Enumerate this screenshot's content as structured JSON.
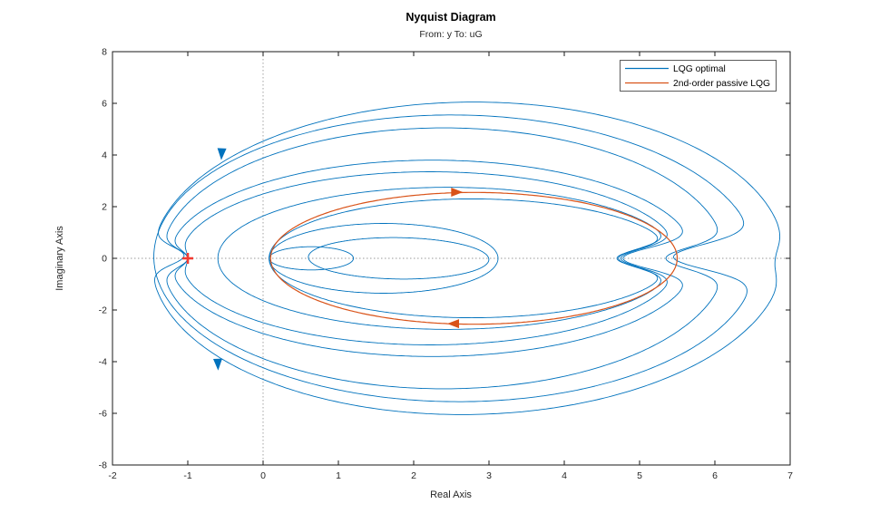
{
  "figure": {
    "title": "Nyquist Diagram",
    "subtitle": "From: y  To: uG"
  },
  "chart_data": {
    "type": "line",
    "subtype": "nyquist",
    "title": "Nyquist Diagram",
    "subtitle": "From: y  To: uG",
    "xlabel": "Real Axis",
    "ylabel": "Imaginary Axis",
    "xlim": [
      -2,
      7
    ],
    "ylim": [
      -8,
      8
    ],
    "xticks": [
      -2,
      -1,
      0,
      1,
      2,
      3,
      4,
      5,
      6,
      7
    ],
    "yticks": [
      -8,
      -6,
      -4,
      -2,
      0,
      2,
      4,
      6,
      8
    ],
    "grid": false,
    "origin_lines": {
      "style": "dotted",
      "color": "#9a9a9a"
    },
    "axis_color": "#1a1a1a",
    "legend": {
      "position": "northeast",
      "entries": [
        {
          "label": "LQG optimal",
          "color": "#0072BD"
        },
        {
          "label": "2nd-order passive LQG",
          "color": "#D95319"
        }
      ]
    },
    "critical_point": {
      "x": -1,
      "y": 0,
      "marker": "+",
      "color": "#F23B32"
    },
    "arrows": [
      {
        "x": -0.55,
        "y": 4.05,
        "angle_deg": 93,
        "color": "#0072BD"
      },
      {
        "x": -0.6,
        "y": -4.1,
        "angle_deg": 88,
        "color": "#0072BD"
      },
      {
        "x": 2.57,
        "y": 2.56,
        "angle_deg": 0,
        "color": "#D95319"
      },
      {
        "x": 2.53,
        "y": -2.53,
        "angle_deg": 180,
        "color": "#D95319"
      }
    ],
    "series": [
      {
        "name": "LQG optimal",
        "color": "#0072BD",
        "line_width": 0.9,
        "loops": [
          {
            "cx": 2.72,
            "a": 4.2,
            "b": 6.05,
            "tilt": -1.5,
            "dent_right": {
              "target": 6.8,
              "sigma": 0.8
            },
            "dent_left": {
              "target": -1.05,
              "sigma": 0.5
            }
          },
          {
            "cx": 2.55,
            "a": 4.0,
            "b": 5.55,
            "tilt": 1.0,
            "dent_right": {
              "target": 5.45,
              "sigma": 0.7
            }
          },
          {
            "cx": 2.4,
            "a": 3.75,
            "b": 5.05,
            "dent_right": {
              "target": 5.35,
              "sigma": 0.6
            },
            "dent_left": {
              "target": -1.0,
              "sigma": 0.5
            }
          },
          {
            "cx": 2.25,
            "a": 3.5,
            "b": 3.8,
            "dent_right": {
              "target": 4.78,
              "sigma": 0.6
            },
            "dent_left": {
              "target": -1.0,
              "sigma": 0.45
            }
          },
          {
            "cx": 2.22,
            "a": 3.32,
            "b": 3.35,
            "dent_right": {
              "target": 4.75,
              "sigma": 0.55
            },
            "dent_left": {
              "target": -1.0,
              "sigma": 0.45
            }
          },
          {
            "cx": 2.45,
            "a": 3.05,
            "b": 2.75,
            "dent_right": {
              "target": 4.72,
              "sigma": 0.55
            }
          },
          {
            "cx": 2.77,
            "a": 2.69,
            "b": 2.3,
            "dent_right": {
              "target": 4.7,
              "sigma": 0.5
            }
          },
          {
            "cx": 1.6,
            "a": 1.52,
            "b": 1.35
          },
          {
            "cx": 1.8,
            "a": 1.2,
            "b": 0.8,
            "tilt": -4
          },
          {
            "cx": 0.64,
            "a": 0.56,
            "b": 0.45
          }
        ]
      },
      {
        "name": "2nd-order passive LQG",
        "color": "#D95319",
        "line_width": 1.2,
        "loops": [
          {
            "cx": 2.8,
            "a": 2.7,
            "b": 2.55
          }
        ]
      }
    ]
  }
}
